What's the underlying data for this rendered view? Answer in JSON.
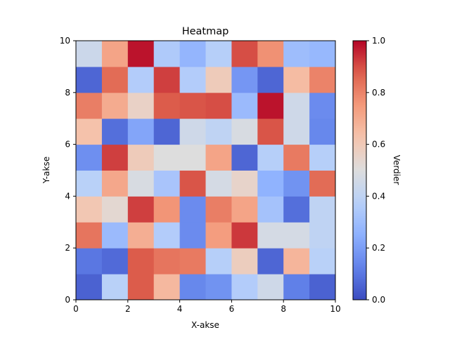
{
  "chart_data": {
    "type": "heatmap",
    "title": "Heatmap",
    "xlabel": "X-akse",
    "ylabel": "Y-akse",
    "xlim": [
      0,
      10
    ],
    "ylim": [
      0,
      10
    ],
    "x_ticks": [
      "0",
      "2",
      "4",
      "6",
      "8",
      "10"
    ],
    "y_ticks": [
      "0",
      "2",
      "4",
      "6",
      "8",
      "10"
    ],
    "colormap": "coolwarm",
    "vmin": 0.0,
    "vmax": 1.0,
    "colorbar_label": "Verdier",
    "colorbar_ticks": [
      "0.0",
      "0.2",
      "0.4",
      "0.6",
      "0.8",
      "1.0"
    ],
    "values": [
      [
        0.05,
        0.38,
        0.88,
        0.66,
        0.14,
        0.17,
        0.36,
        0.45,
        0.12,
        0.05
      ],
      [
        0.1,
        0.07,
        0.88,
        0.83,
        0.82,
        0.37,
        0.58,
        0.06,
        0.67,
        0.38
      ],
      [
        0.83,
        0.29,
        0.69,
        0.36,
        0.15,
        0.74,
        0.93,
        0.47,
        0.47,
        0.4
      ],
      [
        0.61,
        0.53,
        0.92,
        0.76,
        0.15,
        0.81,
        0.72,
        0.32,
        0.08,
        0.4
      ],
      [
        0.38,
        0.71,
        0.48,
        0.33,
        0.89,
        0.47,
        0.55,
        0.26,
        0.17,
        0.85
      ],
      [
        0.16,
        0.92,
        0.59,
        0.5,
        0.5,
        0.72,
        0.06,
        0.37,
        0.82,
        0.37
      ],
      [
        0.63,
        0.08,
        0.22,
        0.06,
        0.45,
        0.4,
        0.48,
        0.89,
        0.45,
        0.14
      ],
      [
        0.81,
        0.7,
        0.56,
        0.88,
        0.89,
        0.9,
        0.29,
        0.98,
        0.45,
        0.15
      ],
      [
        0.06,
        0.85,
        0.36,
        0.92,
        0.36,
        0.59,
        0.18,
        0.06,
        0.65,
        0.8
      ],
      [
        0.44,
        0.72,
        0.98,
        0.35,
        0.27,
        0.37,
        0.9,
        0.77,
        0.3,
        0.28
      ]
    ]
  }
}
